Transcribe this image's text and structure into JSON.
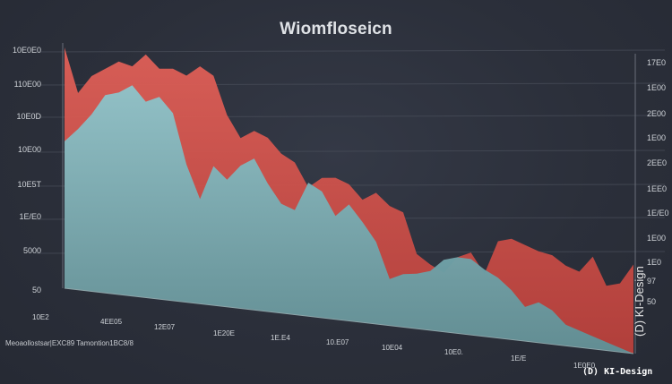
{
  "chart_data": {
    "type": "area",
    "title": "Wiomfloseicn",
    "footnote": "Meoaollostsar|EXC89 Tamontion1BC8/8",
    "y_tick_labels_left": [
      "10E0E0",
      "110E00",
      "10E0D",
      "10E00",
      "10E5T",
      "1E/E0",
      "5000",
      "50"
    ],
    "y_tick_labels_right": [
      "17E0",
      "1E00",
      "2E00",
      "1E00",
      "2EE0",
      "1EE0",
      "1E/E0",
      "1E00",
      "1E0",
      "97",
      "50"
    ],
    "x_tick_labels": [
      "10E2",
      "4EE05",
      "12E07",
      "1E20E",
      "1E.E4",
      "10.E07",
      "10E04",
      "10E0.",
      "1E/E",
      "1E0E0"
    ],
    "x": [
      0,
      1,
      2,
      3,
      4,
      5,
      6,
      7,
      8,
      9,
      10,
      11,
      12,
      13,
      14,
      15,
      16,
      17,
      18,
      19,
      20,
      21,
      22,
      23,
      24,
      25,
      26,
      27,
      28,
      29,
      30,
      31,
      32,
      33,
      34,
      35,
      36,
      37,
      38,
      39,
      40,
      41,
      42
    ],
    "series": [
      {
        "values": [
          100,
          82,
          90,
          94,
          98,
          97,
          103,
          98,
          99,
          97,
          102,
          99,
          83,
          74,
          78,
          76,
          70,
          67,
          57,
          62,
          63,
          61,
          55,
          59,
          54,
          52,
          34,
          30,
          27,
          35,
          38,
          29,
          45,
          47,
          45,
          43,
          42,
          38,
          36,
          44,
          31,
          33,
          43
        ],
        "color": "#d9534c"
      },
      {
        "values": [
          61,
          67,
          74,
          83,
          85,
          89,
          83,
          86,
          80,
          59,
          45,
          60,
          55,
          62,
          66,
          56,
          48,
          46,
          59,
          56,
          46,
          52,
          45,
          37,
          21,
          24,
          25,
          27,
          33,
          35,
          35,
          31,
          28,
          23,
          16,
          19,
          16,
          10,
          8,
          6,
          4,
          2,
          0
        ],
        "color": "#7eb4bb"
      }
    ],
    "ylim": [
      0,
      100
    ],
    "grid": true,
    "legend": "none"
  },
  "watermark": {
    "vertical_text": "(D) KI-Design",
    "bottom_text": "(D) KI-Design"
  }
}
